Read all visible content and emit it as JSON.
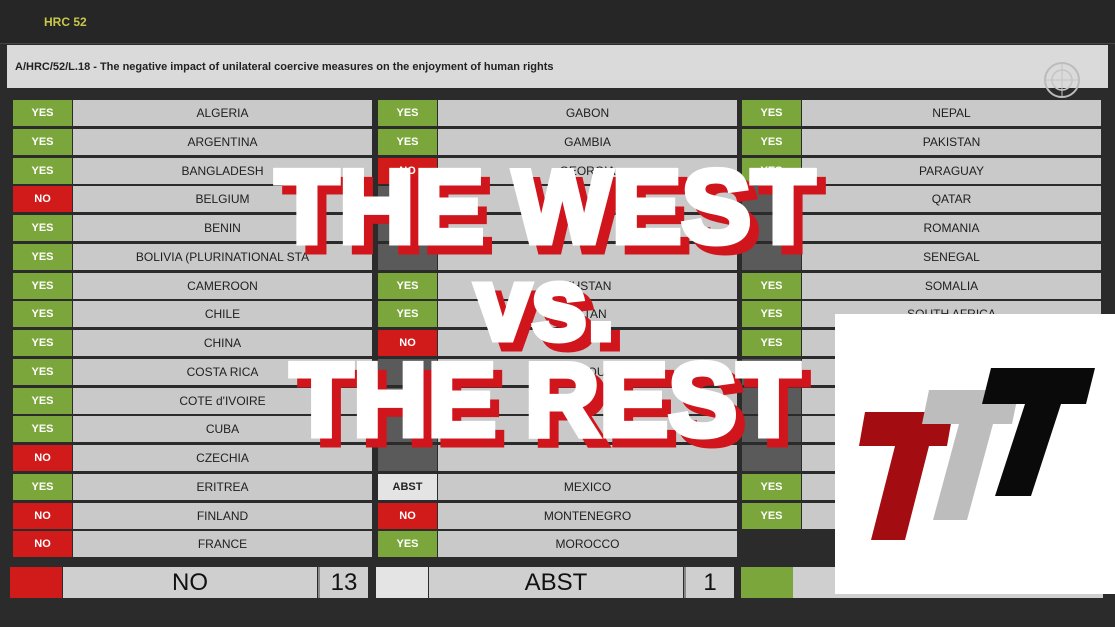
{
  "header": {
    "session": "HRC 52",
    "resolution": "A/HRC/52/L.18 - The negative impact of unilateral coercive measures on the enjoyment of human rights"
  },
  "vote_colors": {
    "YES": "#7ba63b",
    "NO": "#d11a1a",
    "ABST": "#e4e4e4"
  },
  "columns": [
    [
      {
        "vote": "YES",
        "country": "ALGERIA"
      },
      {
        "vote": "YES",
        "country": "ARGENTINA"
      },
      {
        "vote": "YES",
        "country": "BANGLADESH"
      },
      {
        "vote": "NO",
        "country": "BELGIUM"
      },
      {
        "vote": "YES",
        "country": "BENIN"
      },
      {
        "vote": "YES",
        "country": "BOLIVIA (PLURINATIONAL STA"
      },
      {
        "vote": "YES",
        "country": "CAMEROON"
      },
      {
        "vote": "YES",
        "country": "CHILE"
      },
      {
        "vote": "YES",
        "country": "CHINA"
      },
      {
        "vote": "YES",
        "country": "COSTA RICA"
      },
      {
        "vote": "YES",
        "country": "COTE d'IVOIRE"
      },
      {
        "vote": "YES",
        "country": "CUBA"
      },
      {
        "vote": "NO",
        "country": "CZECHIA"
      },
      {
        "vote": "YES",
        "country": "ERITREA"
      },
      {
        "vote": "NO",
        "country": "FINLAND"
      },
      {
        "vote": "NO",
        "country": "FRANCE"
      }
    ],
    [
      {
        "vote": "YES",
        "country": "GABON"
      },
      {
        "vote": "YES",
        "country": "GAMBIA"
      },
      {
        "vote": "NO",
        "country": "GEORGIA"
      },
      {
        "vote": null,
        "country": null
      },
      {
        "vote": null,
        "country": null
      },
      {
        "vote": null,
        "country": null
      },
      {
        "vote": "YES",
        "country": "KHSTAN"
      },
      {
        "vote": "YES",
        "country": "ZSTAN"
      },
      {
        "vote": "NO",
        "country": null
      },
      {
        "vote": null,
        "country": "MBOU"
      },
      {
        "vote": null,
        "country": null
      },
      {
        "vote": null,
        "country": null
      },
      {
        "vote": null,
        "country": null
      },
      {
        "vote": "ABST",
        "country": "MEXICO"
      },
      {
        "vote": "NO",
        "country": "MONTENEGRO"
      },
      {
        "vote": "YES",
        "country": "MOROCCO"
      }
    ],
    [
      {
        "vote": "YES",
        "country": "NEPAL"
      },
      {
        "vote": "YES",
        "country": "PAKISTAN"
      },
      {
        "vote": "YES",
        "country": "PARAGUAY"
      },
      {
        "vote": null,
        "country": "QATAR"
      },
      {
        "vote": null,
        "country": "ROMANIA"
      },
      {
        "vote": null,
        "country": "SENEGAL"
      },
      {
        "vote": "YES",
        "country": "SOMALIA"
      },
      {
        "vote": "YES",
        "country": "SOUTH AFRICA"
      },
      {
        "vote": "YES",
        "country": null
      },
      {
        "vote": null,
        "country": null
      },
      {
        "vote": null,
        "country": null
      },
      {
        "vote": null,
        "country": null
      },
      {
        "vote": null,
        "country": null
      },
      {
        "vote": "YES",
        "country": null
      },
      {
        "vote": "YES",
        "country": null
      }
    ]
  ],
  "summary": [
    {
      "label": "NO",
      "count": 13
    },
    {
      "label": "ABST",
      "count": 1
    }
  ],
  "overlay": {
    "lines": [
      "THE WEST",
      "vs.",
      "THE REST"
    ]
  }
}
